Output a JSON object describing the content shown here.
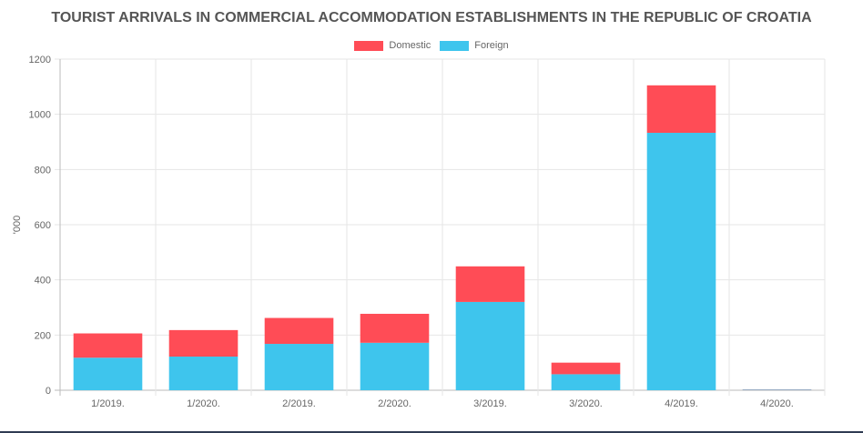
{
  "chart_data": {
    "type": "bar",
    "stacked": true,
    "title": "TOURIST ARRIVALS IN COMMERCIAL ACCOMMODATION ESTABLISHMENTS IN THE REPUBLIC OF CROATIA",
    "ylabel": "'000",
    "xlabel": "",
    "ylim": [
      0,
      1200
    ],
    "yticks": [
      0,
      200,
      400,
      600,
      800,
      1000,
      1200
    ],
    "grid": true,
    "legend_position": "top-center",
    "categories": [
      "1/2019.",
      "1/2020.",
      "2/2019.",
      "2/2020.",
      "3/2019.",
      "3/2020.",
      "4/2019.",
      "4/2020."
    ],
    "series": [
      {
        "name": "Foreign",
        "color": "#3ec5ed",
        "values": [
          118,
          122,
          168,
          172,
          320,
          58,
          933,
          2
        ]
      },
      {
        "name": "Domestic",
        "color": "#ff4c56",
        "values": [
          88,
          96,
          94,
          105,
          129,
          42,
          172,
          1
        ]
      }
    ]
  }
}
